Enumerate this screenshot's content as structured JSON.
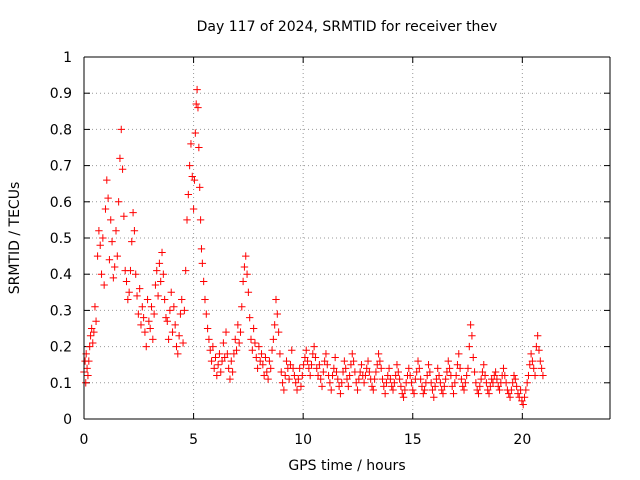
{
  "chart_data": {
    "type": "scatter",
    "title": "Day 117 of 2024, SRMTID for receiver thev",
    "xlabel": "GPS time / hours",
    "ylabel": "SRMTID / TECUs",
    "xlim": [
      0,
      24
    ],
    "ylim": [
      0,
      1
    ],
    "grid": true,
    "xticks": [
      0,
      5,
      10,
      15,
      20
    ],
    "yticks": [
      0,
      0.1,
      0.2,
      0.3,
      0.4,
      0.5,
      0.6,
      0.7,
      0.8,
      0.9,
      1
    ],
    "colors": {
      "series": "#ff0000",
      "axis": "#000000",
      "grid": "#999999"
    },
    "series": [
      {
        "name": "SRMTID",
        "x": [
          0.0,
          0.05,
          0.08,
          0.1,
          0.14,
          0.18,
          0.22,
          0.26,
          0.3,
          0.35,
          0.4,
          0.45,
          0.5,
          0.55,
          0.62,
          0.68,
          0.74,
          0.8,
          0.86,
          0.92,
          0.98,
          1.04,
          1.1,
          1.16,
          1.22,
          1.28,
          1.34,
          1.4,
          1.46,
          1.52,
          1.58,
          1.64,
          1.7,
          1.76,
          1.82,
          1.88,
          1.94,
          2.0,
          2.06,
          2.12,
          2.18,
          2.24,
          2.3,
          2.36,
          2.42,
          2.48,
          2.54,
          2.6,
          2.66,
          2.72,
          2.78,
          2.84,
          2.9,
          2.96,
          3.02,
          3.08,
          3.14,
          3.2,
          3.26,
          3.32,
          3.38,
          3.44,
          3.5,
          3.56,
          3.62,
          3.68,
          3.74,
          3.8,
          3.86,
          3.92,
          3.98,
          4.04,
          4.1,
          4.16,
          4.22,
          4.28,
          4.34,
          4.4,
          4.46,
          4.52,
          4.58,
          4.64,
          4.7,
          4.76,
          4.82,
          4.88,
          4.94,
          5.0,
          5.04,
          5.08,
          5.12,
          5.16,
          5.2,
          5.24,
          5.28,
          5.32,
          5.36,
          5.4,
          5.46,
          5.52,
          5.58,
          5.64,
          5.7,
          5.76,
          5.82,
          5.88,
          5.94,
          6.0,
          6.06,
          6.12,
          6.18,
          6.24,
          6.3,
          6.36,
          6.42,
          6.48,
          6.54,
          6.6,
          6.66,
          6.72,
          6.78,
          6.84,
          6.9,
          6.96,
          7.02,
          7.08,
          7.14,
          7.2,
          7.26,
          7.32,
          7.38,
          7.44,
          7.5,
          7.56,
          7.62,
          7.68,
          7.74,
          7.8,
          7.86,
          7.92,
          7.98,
          8.04,
          8.1,
          8.16,
          8.22,
          8.28,
          8.34,
          8.4,
          8.46,
          8.52,
          8.58,
          8.64,
          8.7,
          8.76,
          8.82,
          8.88,
          8.94,
          9.0,
          9.06,
          9.12,
          9.18,
          9.24,
          9.3,
          9.36,
          9.42,
          9.48,
          9.54,
          9.6,
          9.66,
          9.72,
          9.78,
          9.84,
          9.9,
          9.96,
          10.02,
          10.08,
          10.14,
          10.2,
          10.26,
          10.32,
          10.38,
          10.44,
          10.5,
          10.56,
          10.62,
          10.68,
          10.74,
          10.8,
          10.86,
          10.92,
          10.98,
          11.04,
          11.1,
          11.16,
          11.22,
          11.28,
          11.34,
          11.4,
          11.46,
          11.52,
          11.58,
          11.64,
          11.7,
          11.76,
          11.82,
          11.88,
          11.94,
          12.0,
          12.06,
          12.12,
          12.18,
          12.24,
          12.3,
          12.36,
          12.42,
          12.48,
          12.54,
          12.6,
          12.66,
          12.72,
          12.78,
          12.84,
          12.9,
          12.96,
          13.02,
          13.08,
          13.14,
          13.2,
          13.26,
          13.32,
          13.38,
          13.44,
          13.5,
          13.56,
          13.62,
          13.68,
          13.74,
          13.8,
          13.86,
          13.92,
          13.98,
          14.04,
          14.1,
          14.16,
          14.22,
          14.28,
          14.34,
          14.4,
          14.46,
          14.52,
          14.58,
          14.64,
          14.7,
          14.76,
          14.82,
          14.88,
          14.94,
          15.0,
          15.06,
          15.12,
          15.18,
          15.24,
          15.3,
          15.36,
          15.42,
          15.48,
          15.54,
          15.6,
          15.66,
          15.72,
          15.78,
          15.84,
          15.9,
          15.96,
          16.02,
          16.08,
          16.14,
          16.2,
          16.26,
          16.32,
          16.38,
          16.44,
          16.5,
          16.56,
          16.62,
          16.68,
          16.74,
          16.8,
          16.86,
          16.92,
          16.98,
          17.04,
          17.1,
          17.16,
          17.22,
          17.28,
          17.34,
          17.4,
          17.46,
          17.52,
          17.58,
          17.64,
          17.7,
          17.76,
          17.82,
          17.88,
          17.94,
          18.0,
          18.06,
          18.12,
          18.18,
          18.24,
          18.3,
          18.36,
          18.42,
          18.48,
          18.54,
          18.6,
          18.66,
          18.72,
          18.78,
          18.84,
          18.9,
          18.96,
          19.02,
          19.08,
          19.14,
          19.2,
          19.26,
          19.32,
          19.38,
          19.44,
          19.5,
          19.56,
          19.62,
          19.68,
          19.74,
          19.8,
          19.86,
          19.92,
          19.98,
          20.04,
          20.1,
          20.16,
          20.22,
          20.28,
          20.34,
          20.4,
          20.46,
          20.52,
          20.58,
          20.64,
          20.7,
          20.76,
          20.82,
          20.88,
          20.94
        ],
        "y": [
          0.13,
          0.16,
          0.1,
          0.18,
          0.14,
          0.12,
          0.16,
          0.2,
          0.23,
          0.25,
          0.21,
          0.24,
          0.31,
          0.27,
          0.45,
          0.52,
          0.48,
          0.4,
          0.5,
          0.37,
          0.58,
          0.66,
          0.61,
          0.44,
          0.55,
          0.49,
          0.39,
          0.42,
          0.52,
          0.45,
          0.6,
          0.72,
          0.8,
          0.69,
          0.56,
          0.41,
          0.38,
          0.33,
          0.35,
          0.41,
          0.49,
          0.57,
          0.52,
          0.4,
          0.34,
          0.29,
          0.36,
          0.26,
          0.31,
          0.28,
          0.24,
          0.2,
          0.33,
          0.27,
          0.25,
          0.31,
          0.22,
          0.29,
          0.37,
          0.41,
          0.34,
          0.43,
          0.38,
          0.46,
          0.4,
          0.33,
          0.28,
          0.27,
          0.22,
          0.3,
          0.35,
          0.24,
          0.31,
          0.26,
          0.2,
          0.18,
          0.23,
          0.29,
          0.33,
          0.21,
          0.3,
          0.41,
          0.55,
          0.62,
          0.7,
          0.76,
          0.67,
          0.58,
          0.66,
          0.79,
          0.87,
          0.91,
          0.86,
          0.75,
          0.64,
          0.55,
          0.47,
          0.43,
          0.38,
          0.33,
          0.29,
          0.25,
          0.22,
          0.19,
          0.16,
          0.2,
          0.14,
          0.17,
          0.12,
          0.15,
          0.18,
          0.13,
          0.16,
          0.21,
          0.17,
          0.24,
          0.18,
          0.14,
          0.11,
          0.16,
          0.13,
          0.18,
          0.22,
          0.19,
          0.26,
          0.21,
          0.24,
          0.31,
          0.38,
          0.42,
          0.45,
          0.4,
          0.35,
          0.28,
          0.22,
          0.19,
          0.25,
          0.21,
          0.17,
          0.14,
          0.2,
          0.16,
          0.18,
          0.15,
          0.12,
          0.17,
          0.13,
          0.11,
          0.16,
          0.14,
          0.19,
          0.22,
          0.26,
          0.33,
          0.29,
          0.24,
          0.18,
          0.13,
          0.1,
          0.08,
          0.12,
          0.16,
          0.14,
          0.11,
          0.15,
          0.19,
          0.14,
          0.12,
          0.1,
          0.08,
          0.11,
          0.14,
          0.09,
          0.12,
          0.15,
          0.17,
          0.19,
          0.16,
          0.14,
          0.12,
          0.15,
          0.18,
          0.2,
          0.17,
          0.14,
          0.12,
          0.15,
          0.11,
          0.09,
          0.13,
          0.16,
          0.18,
          0.15,
          0.12,
          0.1,
          0.08,
          0.12,
          0.14,
          0.17,
          0.13,
          0.11,
          0.09,
          0.07,
          0.1,
          0.13,
          0.16,
          0.14,
          0.11,
          0.09,
          0.12,
          0.15,
          0.18,
          0.16,
          0.13,
          0.1,
          0.08,
          0.11,
          0.13,
          0.15,
          0.12,
          0.1,
          0.12,
          0.14,
          0.16,
          0.13,
          0.11,
          0.09,
          0.08,
          0.11,
          0.13,
          0.15,
          0.18,
          0.16,
          0.14,
          0.11,
          0.09,
          0.07,
          0.1,
          0.12,
          0.14,
          0.11,
          0.09,
          0.08,
          0.1,
          0.12,
          0.15,
          0.13,
          0.11,
          0.09,
          0.07,
          0.06,
          0.08,
          0.1,
          0.12,
          0.14,
          0.12,
          0.1,
          0.08,
          0.07,
          0.11,
          0.13,
          0.16,
          0.14,
          0.11,
          0.09,
          0.07,
          0.08,
          0.1,
          0.12,
          0.15,
          0.13,
          0.1,
          0.08,
          0.06,
          0.09,
          0.11,
          0.14,
          0.12,
          0.1,
          0.08,
          0.07,
          0.09,
          0.11,
          0.13,
          0.16,
          0.14,
          0.12,
          0.09,
          0.07,
          0.1,
          0.12,
          0.15,
          0.18,
          0.14,
          0.11,
          0.09,
          0.08,
          0.1,
          0.12,
          0.14,
          0.2,
          0.26,
          0.23,
          0.17,
          0.13,
          0.1,
          0.08,
          0.07,
          0.09,
          0.11,
          0.13,
          0.15,
          0.12,
          0.1,
          0.08,
          0.07,
          0.09,
          0.11,
          0.1,
          0.12,
          0.13,
          0.11,
          0.09,
          0.08,
          0.1,
          0.12,
          0.14,
          0.12,
          0.1,
          0.08,
          0.07,
          0.06,
          0.08,
          0.1,
          0.12,
          0.11,
          0.09,
          0.07,
          0.06,
          0.08,
          0.05,
          0.04,
          0.06,
          0.08,
          0.1,
          0.12,
          0.15,
          0.18,
          0.16,
          0.14,
          0.12,
          0.2,
          0.23,
          0.19,
          0.16,
          0.14,
          0.12
        ]
      }
    ]
  }
}
